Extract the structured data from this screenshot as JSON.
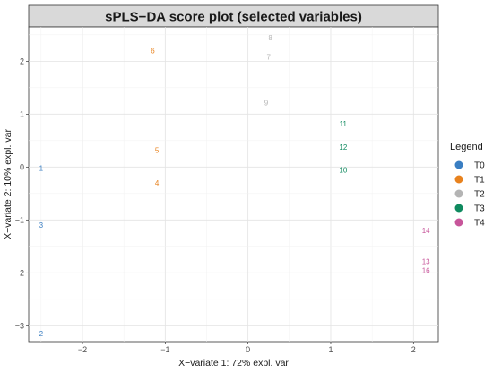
{
  "chart_data": {
    "type": "scatter",
    "title": "sPLS−DA score plot (selected variables)",
    "xlabel": "X−variate 1: 72% expl. var",
    "ylabel": "X−variate 2: 10% expl. var",
    "xlim": [
      -2.65,
      2.3
    ],
    "ylim": [
      -3.3,
      2.65
    ],
    "xticks": [
      -2,
      -1,
      0,
      1,
      2
    ],
    "yticks": [
      -3,
      -2,
      -1,
      0,
      1,
      2
    ],
    "xtick_labels": [
      "−2",
      "−1",
      "0",
      "1",
      "2"
    ],
    "ytick_labels": [
      "−3",
      "−2",
      "−1",
      "0",
      "1",
      "2"
    ],
    "grid": true,
    "legend": {
      "title": "Legend",
      "placement": "right",
      "entries": [
        {
          "name": "T0",
          "color": "#3a7ec2"
        },
        {
          "name": "T1",
          "color": "#e8821e"
        },
        {
          "name": "T2",
          "color": "#b4b4b4"
        },
        {
          "name": "T3",
          "color": "#0f8a5f"
        },
        {
          "name": "T4",
          "color": "#c7559a"
        }
      ]
    },
    "points": [
      {
        "label": "1",
        "group": "T0",
        "x": -2.5,
        "y": -0.02
      },
      {
        "label": "2",
        "group": "T0",
        "x": -2.5,
        "y": -3.15
      },
      {
        "label": "3",
        "group": "T0",
        "x": -2.5,
        "y": -1.1
      },
      {
        "label": "4",
        "group": "T1",
        "x": -1.1,
        "y": -0.3
      },
      {
        "label": "5",
        "group": "T1",
        "x": -1.1,
        "y": 0.32
      },
      {
        "label": "6",
        "group": "T1",
        "x": -1.15,
        "y": 2.2
      },
      {
        "label": "7",
        "group": "T2",
        "x": 0.25,
        "y": 2.08
      },
      {
        "label": "8",
        "group": "T2",
        "x": 0.27,
        "y": 2.45
      },
      {
        "label": "9",
        "group": "T2",
        "x": 0.22,
        "y": 1.22
      },
      {
        "label": "10",
        "group": "T3",
        "x": 1.15,
        "y": -0.05
      },
      {
        "label": "11",
        "group": "T3",
        "x": 1.15,
        "y": 0.82
      },
      {
        "label": "12",
        "group": "T3",
        "x": 1.15,
        "y": 0.38
      },
      {
        "label": "13",
        "group": "T4",
        "x": 2.15,
        "y": -1.78
      },
      {
        "label": "14",
        "group": "T4",
        "x": 2.15,
        "y": -1.2
      },
      {
        "label": "16",
        "group": "T4",
        "x": 2.15,
        "y": -1.95
      }
    ]
  }
}
